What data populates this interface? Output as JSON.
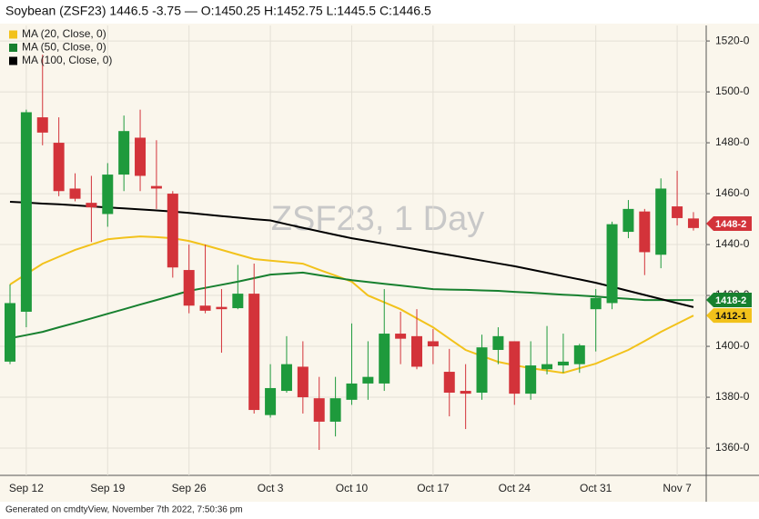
{
  "chart_data": {
    "type": "candlestick",
    "title": "Soybean (ZSF23) 1446.5 -3.75 — O:1450.25 H:1452.75 L:1445.5 C:1446.5",
    "watermark": "ZSF23, 1 Day",
    "footer": "Generated on cmdtyView, November 7th 2022, 7:50:36 pm",
    "categories": [
      null,
      "Sep 12",
      null,
      null,
      null,
      null,
      "Sep 19",
      null,
      null,
      null,
      null,
      "Sep 26",
      null,
      null,
      null,
      null,
      "Oct 3",
      null,
      null,
      null,
      null,
      "Oct 10",
      null,
      null,
      null,
      null,
      "Oct 17",
      null,
      null,
      null,
      null,
      "Oct 24",
      null,
      null,
      null,
      null,
      "Oct 31",
      null,
      null,
      null,
      null,
      "Nov 7",
      null
    ],
    "open": [
      1394,
      1413.6,
      1490,
      1480,
      1462,
      1456.4,
      1452,
      1467.5,
      1482,
      1463,
      1460,
      1430,
      1416,
      1415.5,
      1415,
      1420.7,
      1373,
      1382.5,
      1392,
      1379.6,
      1370.4,
      1379,
      1385.4,
      1385.4,
      1405,
      1404,
      1402,
      1390,
      1382.5,
      1381.8,
      1398.6,
      1402,
      1381.4,
      1391,
      1392.5,
      1393,
      1414.6,
      1417,
      1445,
      1453,
      1436,
      1455,
      1450.25
    ],
    "high": [
      1424.3,
      1493,
      1514.6,
      1490,
      1468,
      1467,
      1472,
      1490.7,
      1493,
      1481,
      1461,
      1440,
      1440,
      1422.5,
      1432,
      1432.5,
      1393,
      1404,
      1402,
      1388,
      1388,
      1409,
      1402,
      1422.5,
      1413.6,
      1414.6,
      1406.8,
      1399,
      1393,
      1404.6,
      1407.5,
      1402,
      1402,
      1408,
      1405,
      1401,
      1422.5,
      1449,
      1457.5,
      1454,
      1466,
      1469,
      1452.75
    ],
    "low": [
      1393,
      1407.5,
      1479,
      1459,
      1457,
      1441,
      1447,
      1461,
      1461,
      1454,
      1427,
      1413,
      1413,
      1397.5,
      1414.6,
      1373.6,
      1372,
      1381.8,
      1373.6,
      1359.3,
      1364.6,
      1377,
      1379,
      1382.5,
      1393,
      1391,
      1393,
      1372.5,
      1367.5,
      1379,
      1393,
      1377,
      1379,
      1389,
      1389.6,
      1389.6,
      1398,
      1414.6,
      1442.5,
      1428,
      1430.7,
      1447.5,
      1445.5
    ],
    "close": [
      1417,
      1492,
      1484,
      1461,
      1458,
      1454.6,
      1467.5,
      1484.6,
      1467,
      1462,
      1431,
      1416,
      1414,
      1414.6,
      1420.7,
      1375,
      1383.6,
      1393,
      1380,
      1370.4,
      1379.6,
      1385.4,
      1388,
      1405,
      1403,
      1392,
      1400,
      1381.8,
      1381.4,
      1399.6,
      1404,
      1381.4,
      1392.5,
      1393,
      1394,
      1400.4,
      1419,
      1448,
      1454,
      1437,
      1462,
      1450.4,
      1446.5
    ],
    "up_color": "#1e9a3c",
    "down_color": "#d3333a",
    "price_label": {
      "value": 1448.25,
      "label": "1448-2"
    },
    "overlays": [
      {
        "name": "MA (20, Close, 0)",
        "color": "#f2c21b",
        "last_label": {
          "value": 1412.125,
          "label": "1412-1"
        },
        "values": [
          1424.3,
          1428.4,
          1432.5,
          1435.2,
          1437.9,
          1440,
          1442.1,
          1442.7,
          1443.2,
          1442.9,
          1442.5,
          1441.4,
          1439.7,
          1437.9,
          1436.1,
          1434.3,
          1433.7,
          1433.1,
          1432.5,
          1430.1,
          1427.8,
          1425.4,
          1420,
          1417.3,
          1414.6,
          1411,
          1407.5,
          1403,
          1398.6,
          1396.2,
          1393.9,
          1392.6,
          1391.4,
          1390.5,
          1389.6,
          1391.4,
          1393.2,
          1395.9,
          1398.6,
          1402.1,
          1405.7,
          1408.9,
          1412.1
        ]
      },
      {
        "name": "MA (50, Close, 0)",
        "color": "#17802f",
        "last_label": {
          "value": 1418.25,
          "label": "1418-2"
        },
        "values": [
          1403.2,
          1404.4,
          1405.7,
          1407.5,
          1409.2,
          1411,
          1412.8,
          1414.6,
          1416.4,
          1418.2,
          1420,
          1421.8,
          1423,
          1424.2,
          1425.4,
          1426.8,
          1428.2,
          1428.6,
          1429,
          1428,
          1427,
          1426,
          1425.3,
          1424.6,
          1423.9,
          1423.2,
          1422.5,
          1422.3,
          1422.2,
          1422,
          1421.8,
          1421.4,
          1421.1,
          1420.7,
          1420.3,
          1420,
          1419.6,
          1419.1,
          1418.7,
          1418.2,
          1418.2,
          1418.2,
          1418.2
        ]
      },
      {
        "name": "MA (100, Close, 0)",
        "color": "#000000",
        "values": [
          1456.8,
          1456.5,
          1456.1,
          1455.8,
          1455.4,
          1455,
          1454.6,
          1454.2,
          1453.8,
          1453.4,
          1453,
          1452.4,
          1451.8,
          1451.2,
          1450.6,
          1450,
          1449.5,
          1448,
          1446.6,
          1445.2,
          1443.8,
          1442.5,
          1441.4,
          1440.3,
          1439.2,
          1438.1,
          1437,
          1435.9,
          1434.8,
          1433.7,
          1432.6,
          1431.5,
          1430.2,
          1428.9,
          1427.6,
          1426.3,
          1425,
          1423.4,
          1421.8,
          1420.2,
          1418.6,
          1417,
          1415.4
        ]
      }
    ],
    "ylim": [
      1349.3,
      1526.1
    ],
    "yticks": [
      {
        "value": 1360,
        "label": "1360-0"
      },
      {
        "value": 1380,
        "label": "1380-0"
      },
      {
        "value": 1400,
        "label": "1400-0"
      },
      {
        "value": 1420,
        "label": "1420-0"
      },
      {
        "value": 1440,
        "label": "1440-0"
      },
      {
        "value": 1460,
        "label": "1460-0"
      },
      {
        "value": 1480,
        "label": "1480-0"
      },
      {
        "value": 1500,
        "label": "1500-0"
      },
      {
        "value": 1520,
        "label": "1520-0"
      }
    ],
    "grid": true
  }
}
